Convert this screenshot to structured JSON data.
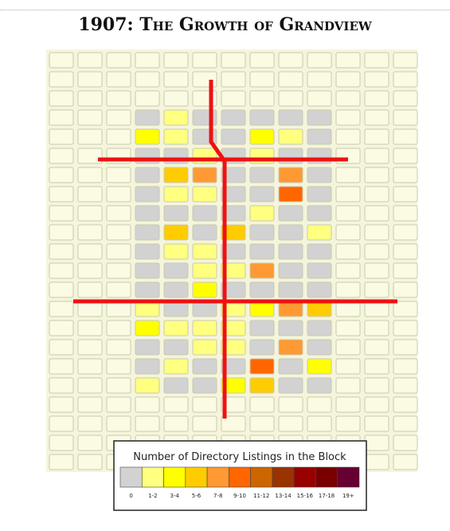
{
  "title": "1907: The Growth of Grandview",
  "legend": {
    "title": "Number of Directory Listings in the Block",
    "labels": [
      "0",
      "1-2",
      "3-4",
      "5-6",
      "7-8",
      "9-10",
      "11-12",
      "13-14",
      "15-16",
      "17-18",
      "19+"
    ],
    "colors": [
      "#d2d2d2",
      "#ffff80",
      "#ffff00",
      "#ffcc00",
      "#ff9933",
      "#ff6600",
      "#cc6600",
      "#993300",
      "#990000",
      "#7a0000",
      "#660033"
    ]
  }
}
